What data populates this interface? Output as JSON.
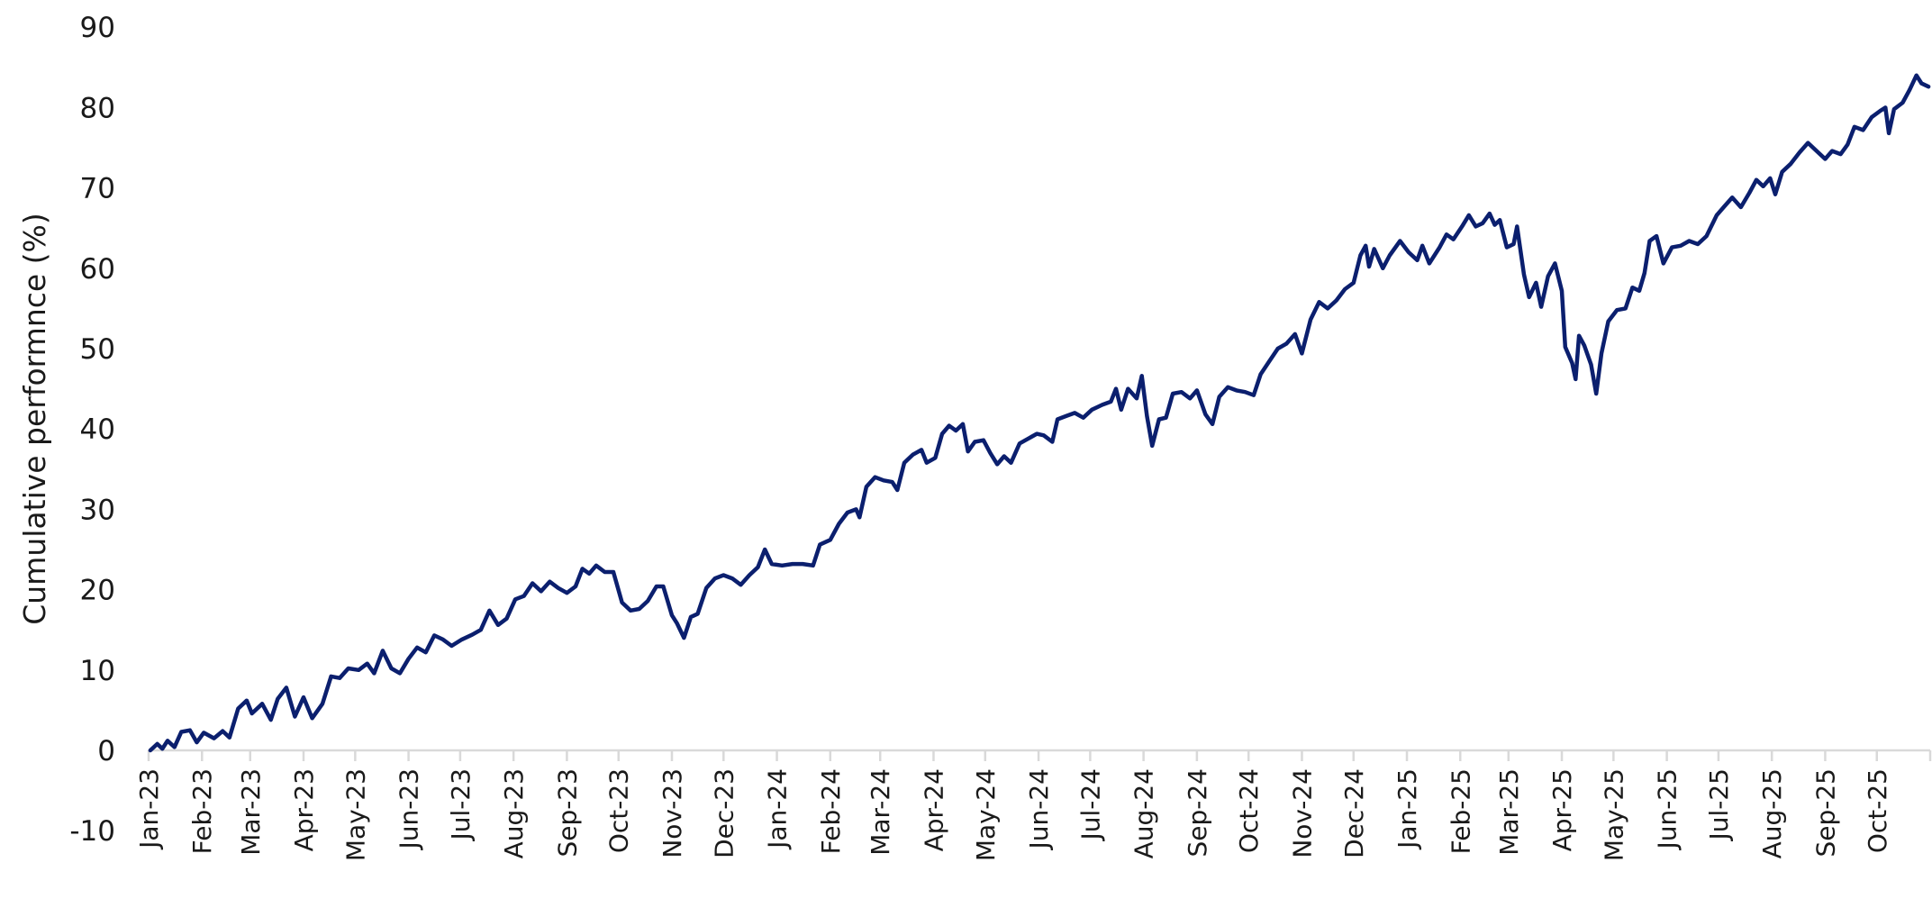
{
  "chart_data": {
    "type": "line",
    "title": "",
    "xlabel": "",
    "ylabel": "Cumulative performnce (%)",
    "ylim": [
      -10,
      90
    ],
    "yticks": [
      -10,
      0,
      10,
      20,
      30,
      40,
      50,
      60,
      70,
      80,
      90
    ],
    "grid": false,
    "legend": null,
    "line_color": "#0b1f6e",
    "axis_color": "#d9d9d9",
    "x_range": [
      "2023-01-01",
      "2025-11-01"
    ],
    "categories": [
      "Jan-23",
      "Feb-23",
      "Mar-23",
      "Apr-23",
      "May-23",
      "Jun-23",
      "Jul-23",
      "Aug-23",
      "Sep-23",
      "Oct-23",
      "Nov-23",
      "Dec-23",
      "Jan-24",
      "Feb-24",
      "Mar-24",
      "Apr-24",
      "May-24",
      "Jun-24",
      "Jul-24",
      "Aug-24",
      "Sep-24",
      "Oct-24",
      "Nov-24",
      "Dec-24",
      "Jan-25",
      "Feb-25",
      "Mar-25",
      "Apr-25",
      "May-25",
      "Jun-25",
      "Jul-25",
      "Aug-25",
      "Sep-25",
      "Oct-25"
    ],
    "series": [
      {
        "name": "Cumulative performance",
        "points": [
          [
            "2023-01-02",
            0.0
          ],
          [
            "2023-01-06",
            0.8
          ],
          [
            "2023-01-09",
            0.2
          ],
          [
            "2023-01-12",
            1.2
          ],
          [
            "2023-01-16",
            0.4
          ],
          [
            "2023-01-20",
            2.3
          ],
          [
            "2023-01-25",
            2.5
          ],
          [
            "2023-01-29",
            1.0
          ],
          [
            "2023-02-02",
            2.2
          ],
          [
            "2023-02-08",
            1.5
          ],
          [
            "2023-02-13",
            2.4
          ],
          [
            "2023-02-17",
            1.6
          ],
          [
            "2023-02-22",
            5.2
          ],
          [
            "2023-02-27",
            6.2
          ],
          [
            "2023-03-02",
            4.6
          ],
          [
            "2023-03-08",
            5.8
          ],
          [
            "2023-03-13",
            3.8
          ],
          [
            "2023-03-17",
            6.4
          ],
          [
            "2023-03-22",
            7.8
          ],
          [
            "2023-03-27",
            4.2
          ],
          [
            "2023-04-01",
            6.6
          ],
          [
            "2023-04-06",
            4.0
          ],
          [
            "2023-04-12",
            5.8
          ],
          [
            "2023-04-17",
            9.2
          ],
          [
            "2023-04-22",
            9.0
          ],
          [
            "2023-04-27",
            10.2
          ],
          [
            "2023-05-03",
            10.0
          ],
          [
            "2023-05-08",
            10.8
          ],
          [
            "2023-05-12",
            9.6
          ],
          [
            "2023-05-17",
            12.4
          ],
          [
            "2023-05-22",
            10.2
          ],
          [
            "2023-05-27",
            9.6
          ],
          [
            "2023-06-01",
            11.4
          ],
          [
            "2023-06-06",
            12.8
          ],
          [
            "2023-06-11",
            12.2
          ],
          [
            "2023-06-16",
            14.3
          ],
          [
            "2023-06-21",
            13.8
          ],
          [
            "2023-06-26",
            13.0
          ],
          [
            "2023-07-02",
            13.8
          ],
          [
            "2023-07-08",
            14.4
          ],
          [
            "2023-07-13",
            15.0
          ],
          [
            "2023-07-18",
            17.4
          ],
          [
            "2023-07-23",
            15.6
          ],
          [
            "2023-07-28",
            16.4
          ],
          [
            "2023-08-02",
            18.8
          ],
          [
            "2023-08-07",
            19.2
          ],
          [
            "2023-08-12",
            20.8
          ],
          [
            "2023-08-17",
            19.8
          ],
          [
            "2023-08-22",
            21.0
          ],
          [
            "2023-08-27",
            20.2
          ],
          [
            "2023-09-01",
            19.6
          ],
          [
            "2023-09-06",
            20.4
          ],
          [
            "2023-09-10",
            22.6
          ],
          [
            "2023-09-14",
            22.0
          ],
          [
            "2023-09-18",
            23.0
          ],
          [
            "2023-09-23",
            22.2
          ],
          [
            "2023-09-28",
            22.2
          ],
          [
            "2023-10-03",
            18.4
          ],
          [
            "2023-10-08",
            17.4
          ],
          [
            "2023-10-13",
            17.6
          ],
          [
            "2023-10-18",
            18.6
          ],
          [
            "2023-10-23",
            20.4
          ],
          [
            "2023-10-27",
            20.4
          ],
          [
            "2023-11-01",
            16.8
          ],
          [
            "2023-11-04",
            15.8
          ],
          [
            "2023-11-08",
            14.0
          ],
          [
            "2023-11-12",
            16.6
          ],
          [
            "2023-11-16",
            17.0
          ],
          [
            "2023-11-21",
            20.2
          ],
          [
            "2023-11-26",
            21.4
          ],
          [
            "2023-12-01",
            21.8
          ],
          [
            "2023-12-06",
            21.4
          ],
          [
            "2023-12-11",
            20.6
          ],
          [
            "2023-12-16",
            21.8
          ],
          [
            "2023-12-21",
            22.8
          ],
          [
            "2023-12-25",
            25.0
          ],
          [
            "2023-12-29",
            23.2
          ],
          [
            "2024-01-04",
            23.0
          ],
          [
            "2024-01-10",
            23.2
          ],
          [
            "2024-01-16",
            23.2
          ],
          [
            "2024-01-22",
            23.0
          ],
          [
            "2024-01-26",
            25.6
          ],
          [
            "2024-02-01",
            26.2
          ],
          [
            "2024-02-06",
            28.2
          ],
          [
            "2024-02-11",
            29.6
          ],
          [
            "2024-02-16",
            30.0
          ],
          [
            "2024-02-18",
            29.0
          ],
          [
            "2024-02-22",
            32.8
          ],
          [
            "2024-02-27",
            34.0
          ],
          [
            "2024-03-03",
            33.6
          ],
          [
            "2024-03-08",
            33.4
          ],
          [
            "2024-03-11",
            32.4
          ],
          [
            "2024-03-15",
            35.8
          ],
          [
            "2024-03-20",
            36.8
          ],
          [
            "2024-03-25",
            37.4
          ],
          [
            "2024-03-28",
            35.8
          ],
          [
            "2024-04-02",
            36.4
          ],
          [
            "2024-04-06",
            39.4
          ],
          [
            "2024-04-10",
            40.4
          ],
          [
            "2024-04-14",
            39.8
          ],
          [
            "2024-04-18",
            40.6
          ],
          [
            "2024-04-21",
            37.2
          ],
          [
            "2024-04-25",
            38.4
          ],
          [
            "2024-04-30",
            38.6
          ],
          [
            "2024-05-04",
            37.0
          ],
          [
            "2024-05-08",
            35.6
          ],
          [
            "2024-05-12",
            36.6
          ],
          [
            "2024-05-16",
            35.8
          ],
          [
            "2024-05-21",
            38.2
          ],
          [
            "2024-05-26",
            38.8
          ],
          [
            "2024-05-31",
            39.4
          ],
          [
            "2024-06-04",
            39.2
          ],
          [
            "2024-06-09",
            38.4
          ],
          [
            "2024-06-12",
            41.2
          ],
          [
            "2024-06-17",
            41.6
          ],
          [
            "2024-06-22",
            42.0
          ],
          [
            "2024-06-27",
            41.4
          ],
          [
            "2024-07-02",
            42.4
          ],
          [
            "2024-07-08",
            43.0
          ],
          [
            "2024-07-13",
            43.4
          ],
          [
            "2024-07-16",
            45.0
          ],
          [
            "2024-07-19",
            42.4
          ],
          [
            "2024-07-23",
            45.0
          ],
          [
            "2024-07-28",
            43.8
          ],
          [
            "2024-07-31",
            46.6
          ],
          [
            "2024-08-03",
            41.6
          ],
          [
            "2024-08-06",
            37.9
          ],
          [
            "2024-08-10",
            41.2
          ],
          [
            "2024-08-14",
            41.4
          ],
          [
            "2024-08-18",
            44.4
          ],
          [
            "2024-08-23",
            44.6
          ],
          [
            "2024-08-28",
            43.8
          ],
          [
            "2024-09-01",
            44.8
          ],
          [
            "2024-09-06",
            41.8
          ],
          [
            "2024-09-10",
            40.6
          ],
          [
            "2024-09-14",
            44.0
          ],
          [
            "2024-09-19",
            45.2
          ],
          [
            "2024-09-24",
            44.8
          ],
          [
            "2024-09-29",
            44.6
          ],
          [
            "2024-10-04",
            44.2
          ],
          [
            "2024-10-08",
            46.8
          ],
          [
            "2024-10-13",
            48.4
          ],
          [
            "2024-10-18",
            50.0
          ],
          [
            "2024-10-23",
            50.6
          ],
          [
            "2024-10-28",
            51.8
          ],
          [
            "2024-11-01",
            49.4
          ],
          [
            "2024-11-06",
            53.6
          ],
          [
            "2024-11-11",
            55.8
          ],
          [
            "2024-11-16",
            55.0
          ],
          [
            "2024-11-21",
            56.0
          ],
          [
            "2024-11-26",
            57.4
          ],
          [
            "2024-12-01",
            58.2
          ],
          [
            "2024-12-05",
            61.6
          ],
          [
            "2024-12-08",
            62.8
          ],
          [
            "2024-12-10",
            60.2
          ],
          [
            "2024-12-13",
            62.4
          ],
          [
            "2024-12-18",
            60.0
          ],
          [
            "2024-12-22",
            61.6
          ],
          [
            "2024-12-28",
            63.4
          ],
          [
            "2025-01-02",
            62.0
          ],
          [
            "2025-01-07",
            61.0
          ],
          [
            "2025-01-10",
            62.8
          ],
          [
            "2025-01-14",
            60.6
          ],
          [
            "2025-01-20",
            62.6
          ],
          [
            "2025-01-24",
            64.2
          ],
          [
            "2025-01-28",
            63.6
          ],
          [
            "2025-02-02",
            65.2
          ],
          [
            "2025-02-06",
            66.6
          ],
          [
            "2025-02-10",
            65.2
          ],
          [
            "2025-02-14",
            65.6
          ],
          [
            "2025-02-18",
            66.8
          ],
          [
            "2025-02-21",
            65.4
          ],
          [
            "2025-02-24",
            66.0
          ],
          [
            "2025-02-28",
            62.6
          ],
          [
            "2025-03-04",
            63.0
          ],
          [
            "2025-03-06",
            65.2
          ],
          [
            "2025-03-10",
            59.2
          ],
          [
            "2025-03-13",
            56.4
          ],
          [
            "2025-03-17",
            58.2
          ],
          [
            "2025-03-20",
            55.2
          ],
          [
            "2025-03-24",
            59.0
          ],
          [
            "2025-03-28",
            60.6
          ],
          [
            "2025-04-01",
            57.2
          ],
          [
            "2025-04-03",
            50.2
          ],
          [
            "2025-04-07",
            48.2
          ],
          [
            "2025-04-09",
            46.2
          ],
          [
            "2025-04-11",
            51.6
          ],
          [
            "2025-04-14",
            50.4
          ],
          [
            "2025-04-18",
            48.0
          ],
          [
            "2025-04-21",
            44.4
          ],
          [
            "2025-04-24",
            49.4
          ],
          [
            "2025-04-28",
            53.4
          ],
          [
            "2025-05-03",
            54.8
          ],
          [
            "2025-05-08",
            55.0
          ],
          [
            "2025-05-12",
            57.6
          ],
          [
            "2025-05-16",
            57.2
          ],
          [
            "2025-05-19",
            59.4
          ],
          [
            "2025-05-22",
            63.4
          ],
          [
            "2025-05-26",
            64.0
          ],
          [
            "2025-05-30",
            60.6
          ],
          [
            "2025-06-04",
            62.6
          ],
          [
            "2025-06-09",
            62.8
          ],
          [
            "2025-06-14",
            63.4
          ],
          [
            "2025-06-19",
            63.0
          ],
          [
            "2025-06-24",
            64.0
          ],
          [
            "2025-06-30",
            66.6
          ],
          [
            "2025-07-04",
            67.6
          ],
          [
            "2025-07-09",
            68.8
          ],
          [
            "2025-07-14",
            67.6
          ],
          [
            "2025-07-19",
            69.4
          ],
          [
            "2025-07-23",
            71.0
          ],
          [
            "2025-07-27",
            70.2
          ],
          [
            "2025-07-31",
            71.2
          ],
          [
            "2025-08-03",
            69.2
          ],
          [
            "2025-08-07",
            72.0
          ],
          [
            "2025-08-12",
            73.0
          ],
          [
            "2025-08-17",
            74.4
          ],
          [
            "2025-08-22",
            75.6
          ],
          [
            "2025-08-27",
            74.6
          ],
          [
            "2025-09-01",
            73.6
          ],
          [
            "2025-09-05",
            74.6
          ],
          [
            "2025-09-10",
            74.2
          ],
          [
            "2025-09-14",
            75.4
          ],
          [
            "2025-09-18",
            77.6
          ],
          [
            "2025-09-23",
            77.2
          ],
          [
            "2025-09-28",
            78.8
          ],
          [
            "2025-10-03",
            79.6
          ],
          [
            "2025-10-06",
            80.0
          ],
          [
            "2025-10-08",
            76.8
          ],
          [
            "2025-10-11",
            79.8
          ],
          [
            "2025-10-16",
            80.6
          ],
          [
            "2025-10-20",
            82.2
          ],
          [
            "2025-10-24",
            84.0
          ],
          [
            "2025-10-27",
            83.0
          ],
          [
            "2025-10-31",
            82.6
          ]
        ]
      }
    ]
  }
}
